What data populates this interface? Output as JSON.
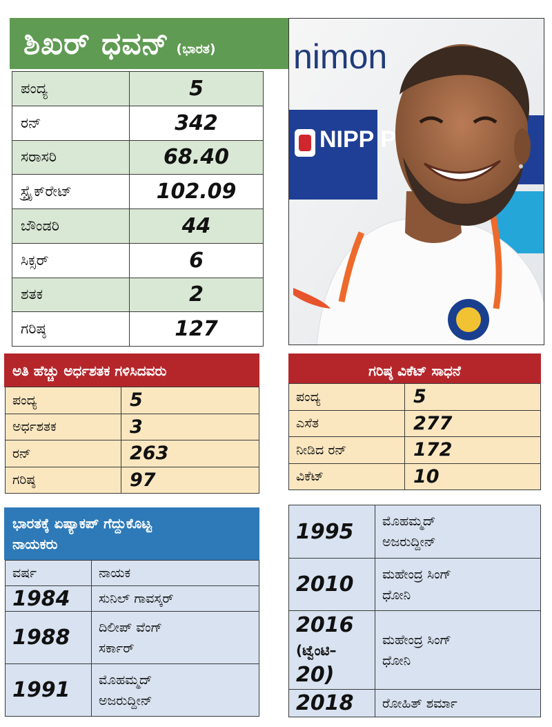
{
  "title": {
    "name": "ಶಿಖರ್ ಧವನ್",
    "country": "(ಭಾರತ)"
  },
  "main_stats": [
    {
      "label": "ಪಂದ್ಯ",
      "value": "5"
    },
    {
      "label": "ರನ್",
      "value": "342"
    },
    {
      "label": "ಸರಾಸರಿ",
      "value": "68.40"
    },
    {
      "label": "ಸ್ಟ್ರೈಕ್‌ರೇಟ್",
      "value": "102.09"
    },
    {
      "label": "ಬೌಂಡರಿ",
      "value": "44"
    },
    {
      "label": "ಸಿಕ್ಸರ್",
      "value": "6"
    },
    {
      "label": "ಶತಕ",
      "value": "2"
    },
    {
      "label": "ಗರಿಷ್ಠ",
      "value": "127"
    }
  ],
  "photo": {
    "banner_text": "nimon",
    "sponsor_text": "NIPP PAI"
  },
  "fifties": {
    "heading": "ಅತಿ ಹೆಚ್ಚು ಅರ್ಧಶತಕ ಗಳಿಸಿದವರು",
    "rows": [
      {
        "label": "ಪಂದ್ಯ",
        "value": "5"
      },
      {
        "label": "ಅರ್ಧಶತಕ",
        "value": "3"
      },
      {
        "label": "ರನ್",
        "value": "263"
      },
      {
        "label": "ಗರಿಷ್ಠ",
        "value": "97"
      }
    ]
  },
  "best_bowling": {
    "heading": "ಗರಿಷ್ಠ ವಿಕೆಟ್ ಸಾಧನೆ",
    "rows": [
      {
        "label": "ಪಂದ್ಯ",
        "value": "5"
      },
      {
        "label": "ಎಸೆತ",
        "value": "277"
      },
      {
        "label": "ನೀಡಿದ ರನ್",
        "value": "172"
      },
      {
        "label": "ವಿಕೆಟ್",
        "value": "10"
      }
    ]
  },
  "captains": {
    "heading_line1": "ಭಾರತಕ್ಕೆ ಏಷ್ಯಾಕಪ್ ಗೆದ್ದುಕೊಟ್ಟ",
    "heading_line2": "ನಾಯಕರು",
    "col_year": "ವರ್ಷ",
    "col_captain": "ನಾಯಕ",
    "left_rows": [
      {
        "year": "1984",
        "name_line1": "ಸುನಿಲ್ ಗಾವಸ್ಕರ್",
        "name_line2": ""
      },
      {
        "year": "1988",
        "name_line1": "ದಿಲೀಪ್ ವೆಂಗ್",
        "name_line2": "ಸರ್ಕಾರ್"
      },
      {
        "year": "1991",
        "name_line1": "ಮೊಹಮ್ಮದ್",
        "name_line2": "ಅಜರುದ್ದೀನ್"
      }
    ],
    "right_rows": [
      {
        "year": "1995",
        "note": "",
        "name_line1": "ಮೊಹಮ್ಮದ್",
        "name_line2": "ಅಜರುದ್ದೀನ್"
      },
      {
        "year": "2010",
        "note": "",
        "name_line1": "ಮಹೇಂದ್ರ ಸಿಂಗ್",
        "name_line2": "ಧೋನಿ"
      },
      {
        "year": "2016",
        "note_line1": "(ಟ್ವೆಂಟಿ–",
        "note_line2": "20)",
        "name_line1": "ಮಹೇಂದ್ರ ಸಿಂಗ್",
        "name_line2": "ಧೋನಿ"
      },
      {
        "year": "2018",
        "note": "",
        "name_line1": "ರೋಹಿತ್ ಶರ್ಮಾ",
        "name_line2": ""
      }
    ]
  },
  "colors": {
    "title_green": "#5f9b52",
    "row_green": "#d9e8d5",
    "header_red": "#b5262b",
    "row_cream": "#fae7c0",
    "header_blue": "#2e7ab8",
    "row_blue": "#d8e2f0"
  }
}
